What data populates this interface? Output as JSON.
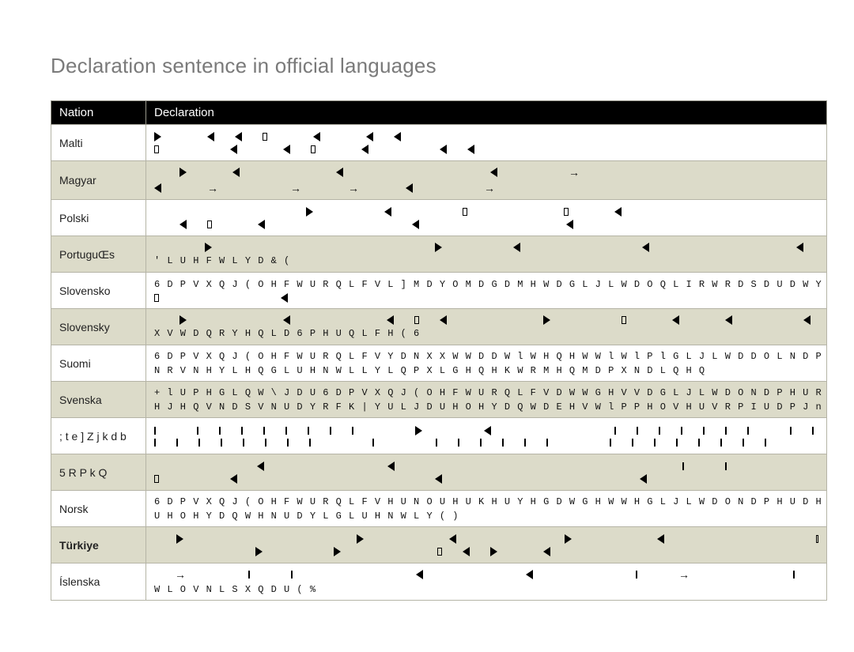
{
  "title": "Declaration sentence in official languages",
  "columns": {
    "nation": "Nation",
    "declaration": "Declaration"
  },
  "colors": {
    "header_bg": "#000000",
    "header_fg": "#ffffff",
    "row_odd_bg": "#ffffff",
    "row_even_bg": "#dcdbc9",
    "border": "#b5b4a6",
    "title_fg": "#7a7a7a"
  },
  "rows": [
    {
      "nation": "Malti",
      "shade": "odd",
      "type": "glyph2",
      "pattern1": [
        "r",
        "",
        "l",
        "l",
        "sq",
        "",
        "l",
        "",
        "l",
        "l"
      ],
      "pattern2": [
        "sq",
        "",
        "",
        "l",
        "",
        "l",
        "sq",
        "",
        "l",
        "",
        "",
        "l",
        "l"
      ]
    },
    {
      "nation": "Magyar",
      "shade": "even",
      "type": "glyph2",
      "pattern1": [
        "",
        "r",
        "",
        "l",
        "",
        "",
        "",
        "l",
        "",
        "",
        "",
        "",
        "",
        "l",
        "",
        "",
        "arr"
      ],
      "pattern2": [
        "l",
        "",
        "arr",
        "",
        "",
        "arr",
        "",
        "arr",
        "",
        "l",
        "",
        "",
        "arr"
      ]
    },
    {
      "nation": "Polski",
      "shade": "odd",
      "type": "glyph2",
      "pattern1": [
        "",
        "",
        "",
        "",
        "",
        "",
        "r",
        "",
        "",
        "l",
        "",
        "",
        "sq",
        "",
        "",
        "",
        "sq",
        "",
        "l"
      ],
      "pattern2": [
        "",
        "l",
        "sq",
        "",
        "l",
        "",
        "",
        "",
        "",
        "",
        "l",
        "",
        "",
        "",
        "",
        "",
        "l"
      ]
    },
    {
      "nation": "PortuguŒs",
      "shade": "even",
      "type": "mixed",
      "pattern1": [
        "",
        "",
        "r",
        "",
        "",
        "",
        "",
        "",
        "",
        "",
        "",
        "r",
        "",
        "",
        "l",
        "",
        "",
        "",
        "",
        "l",
        "",
        "",
        "",
        "",
        "",
        "l"
      ],
      "text": "' L U H F W L Y D          & ("
    },
    {
      "nation": "Slovensko",
      "shade": "odd",
      "type": "textglyph",
      "text": "6 D P V X Q J   ( O H F W U R Q L F V   L ] M D Y O M D     G D   M H   W D   G L J L W D O Q L   I R W R D S D U D W   Y   V",
      "pattern2": [
        "sq",
        "",
        "",
        "",
        "",
        "l"
      ]
    },
    {
      "nation": "Slovensky",
      "shade": "even",
      "type": "glyphtext",
      "pattern1": [
        "",
        "r",
        "",
        "",
        "",
        "l",
        "",
        "",
        "",
        "l",
        "sq",
        "l",
        "",
        "",
        "",
        "r",
        "",
        "",
        "sq",
        "",
        "l",
        "",
        "l",
        "",
        "",
        "l"
      ],
      "text": "X V W D Q R Y H Q L D   6 P H U Q L F H            ( 6"
    },
    {
      "nation": "Suomi",
      "shade": "odd",
      "type": "text2",
      "text1": "6 D P V X Q J   ( O H F W U R Q L F V   Y D N X X W W D D   W l W H Q   H W W l   W l P l   G L J L W D D O L N D P H U D",
      "text2": "N R V N H Y L H Q   G L U H N W L L Y L Q   P X L G H Q   H K W R M H Q   M D   P X N D L Q H Q"
    },
    {
      "nation": "Svenska",
      "shade": "even",
      "type": "text2",
      "text1": "+ l U P H G   L Q W \\ J D U   6 D P V X Q J   ( O H F W U R Q L F V D W W   G H V V D   G L J L W D O N D P H U R U   V W n",
      "text2": "H J H Q V N D S V N U D Y   R F K   | Y U L J D   U H O H Y D Q W D   E H V W l P P H O V H U   V R P   I U D P J n U   D Y"
    },
    {
      "nation": "; t e ] Z j k d b",
      "shade": "odd",
      "type": "glyph2",
      "pattern1": [
        "sq",
        "",
        "sq",
        "sq",
        "sq",
        "sq",
        "sq",
        "sq",
        "sq",
        "sq",
        "",
        "",
        "r",
        "",
        "",
        "l",
        "",
        "",
        "",
        "",
        "",
        "sq",
        "sq",
        "sq",
        "sq",
        "sq",
        "sq",
        "sq",
        "",
        "sq",
        "sq",
        "",
        "",
        "sq",
        "sq",
        "sq",
        "",
        "",
        "sq",
        "sq",
        "sq",
        "sq"
      ],
      "pattern2": [
        "sq",
        "sq",
        "sq",
        "sq",
        "sq",
        "sq",
        "sq",
        "sq",
        "",
        "",
        "sq",
        "",
        "",
        "sq",
        "sq",
        "sq",
        "sq",
        "sq",
        "sq",
        "",
        "",
        "sq",
        "sq",
        "sq",
        "sq",
        "sq",
        "sq",
        "sq",
        "sq",
        "",
        "",
        "",
        "sq",
        "sq",
        "sq",
        "sq",
        "sq",
        "sq",
        "sq",
        "sq",
        "sq",
        "",
        "",
        "",
        "sq",
        "sq",
        "",
        "",
        "sq",
        "sq",
        "sq",
        "sq",
        "sq",
        "sq",
        "sq",
        "sq"
      ]
    },
    {
      "nation": "5 R P k Q",
      "shade": "even",
      "type": "glyph2",
      "pattern1": [
        "",
        "",
        "",
        "",
        "",
        "l",
        "",
        "",
        "",
        "",
        "",
        "l",
        "",
        "",
        "",
        "",
        "",
        "",
        "",
        "",
        "",
        "",
        "",
        "",
        "",
        "sq",
        "",
        "sq",
        "",
        "",
        "",
        "",
        "l",
        "sq"
      ],
      "pattern2": [
        "sq",
        "",
        "",
        "l",
        "",
        "",
        "",
        "",
        "",
        "",
        "",
        "l",
        "",
        "",
        "",
        "",
        "",
        "",
        "",
        "l"
      ]
    },
    {
      "nation": "Norsk",
      "shade": "odd",
      "type": "text2",
      "text1": "6 D P V X Q J   ( O H F W U R Q L F V H U N O   U H U   K H U Y H G   D W   G H W W H   G L J L W D O N D P H U D H W   H",
      "text2": "U H O H Y D Q W H   N U D Y   L   G L U H N W L Y                  ( )"
    },
    {
      "nation": "Türkiye",
      "shade": "even",
      "bold": true,
      "type": "glyph2",
      "pattern1": [
        "",
        "r",
        "",
        "",
        "",
        "",
        "",
        "",
        "",
        "r",
        "",
        "",
        "",
        "l",
        "",
        "",
        "",
        "",
        "r",
        "",
        "",
        "",
        "l",
        "",
        "",
        "",
        "",
        "",
        "",
        "sq"
      ],
      "pattern2": [
        "",
        "",
        "",
        "",
        "r",
        "",
        "",
        "r",
        "",
        "",
        "",
        "sq",
        "l",
        "r",
        "",
        "l"
      ]
    },
    {
      "nation": "Íslenska",
      "shade": "odd",
      "type": "mixed",
      "pattern1": [
        "",
        "arr",
        "",
        "",
        "sq",
        "",
        "sq",
        "",
        "",
        "",
        "",
        "",
        "l",
        "",
        "",
        "",
        "",
        "l",
        "",
        "",
        "",
        "",
        "sq",
        "",
        "arr",
        "",
        "",
        "",
        "",
        "sq",
        "",
        "sq",
        "",
        "",
        "",
        "",
        "l"
      ],
      "text": "W L O V N L S X Q D U              ( %"
    }
  ]
}
